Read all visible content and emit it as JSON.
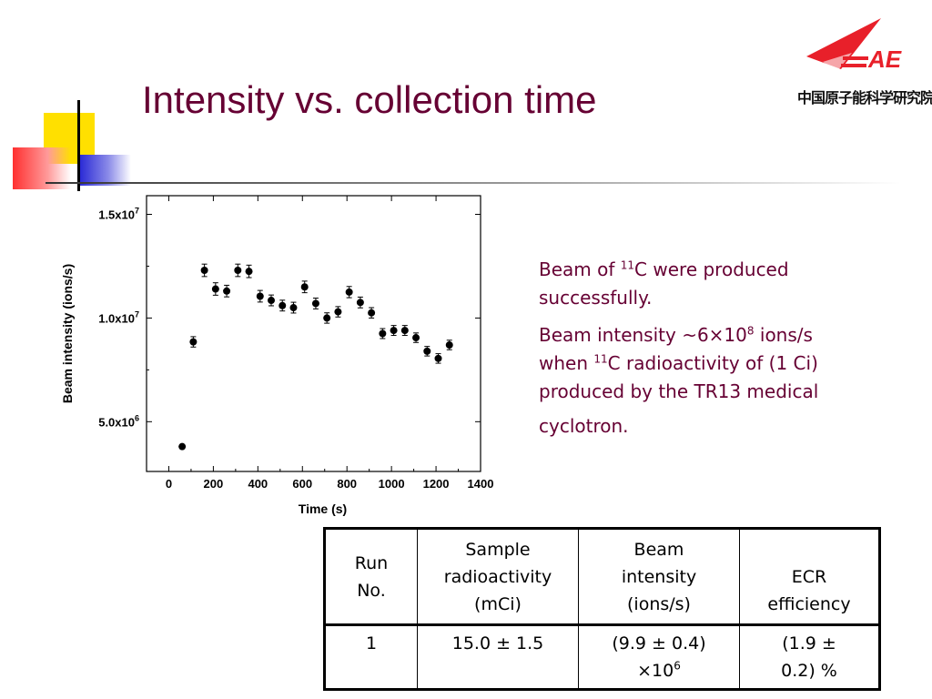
{
  "slide": {
    "title": "Intensity vs. collection time",
    "logo": {
      "text": "AE",
      "caption": "中国原子能科学研究院"
    }
  },
  "text_blocks": [
    {
      "pre": "Beam of ",
      "sup": "11",
      "post": "C were produced successfully."
    },
    {
      "line1_pre": "Beam intensity ~6×10",
      "line1_sup": "8",
      "line1_post": " ions/s",
      "line2_pre": "when ",
      "line2_sup": "11",
      "line2_post": "C radioactivity of (1 Ci) produced by the TR13 medical",
      "line3": "cyclotron."
    }
  ],
  "chart_data": {
    "type": "scatter",
    "title": "",
    "xlabel": "Time (s)",
    "ylabel": "Beam intensity (ions/s)",
    "xlim": [
      -100,
      1400
    ],
    "ylim": [
      2600000,
      15900000
    ],
    "xticks": [
      "0",
      "200",
      "400",
      "600",
      "800",
      "1000",
      "1200",
      "1400"
    ],
    "xtick_values": [
      0,
      200,
      400,
      600,
      800,
      1000,
      1200,
      1400
    ],
    "yticks": [
      "5.0x10^6",
      "1.0x10^7",
      "1.5x10^7"
    ],
    "ytick_values": [
      5000000,
      10000000,
      15000000
    ],
    "series": [
      {
        "x": [
          60,
          110,
          160,
          210,
          260,
          310,
          360,
          410,
          460,
          510,
          560,
          610,
          660,
          710,
          760,
          810,
          860,
          910,
          960,
          1010,
          1060,
          1110,
          1160,
          1210,
          1260
        ],
        "y": [
          3800000,
          8850000,
          12300000,
          11400000,
          11300000,
          12300000,
          12250000,
          11050000,
          10850000,
          10600000,
          10500000,
          11500000,
          10700000,
          10000000,
          10300000,
          11250000,
          10750000,
          10250000,
          9250000,
          9400000,
          9400000,
          9050000,
          8400000,
          8050000,
          8700000
        ],
        "err": [
          0,
          250000,
          300000,
          300000,
          280000,
          300000,
          300000,
          280000,
          260000,
          260000,
          260000,
          280000,
          260000,
          250000,
          250000,
          270000,
          260000,
          250000,
          240000,
          240000,
          240000,
          230000,
          230000,
          230000,
          230000
        ]
      }
    ]
  },
  "table": {
    "headers": [
      [
        "Run",
        "No."
      ],
      [
        "Sample",
        "radioactivity",
        "(mCi)"
      ],
      [
        "Beam",
        "intensity",
        "(ions/s)"
      ],
      [
        "ECR",
        "efficiency"
      ]
    ],
    "row": {
      "run": "1",
      "sample": "15.0 ± 1.5",
      "beam_line1": "(9.9 ± 0.4)",
      "beam_line2_pre": "×10",
      "beam_line2_sup": "6",
      "ecr_line1": "(1.9 ±",
      "ecr_line2": "0.2) %"
    }
  },
  "colors": {
    "title": "#660033",
    "body_text": "#660033",
    "logo_red": "#e8202a"
  }
}
